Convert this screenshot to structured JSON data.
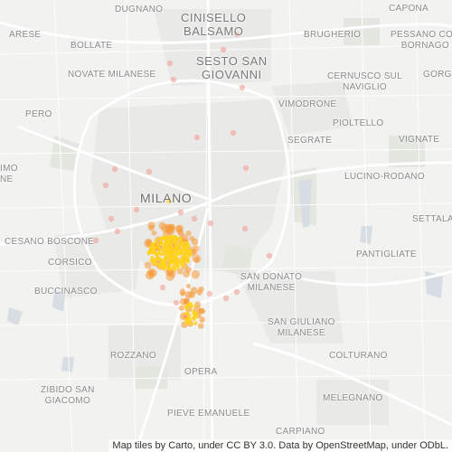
{
  "map": {
    "places": {
      "dugnano": "DUGNANO",
      "cinisello": "CINISELLO\nBALSAMO",
      "capona": "CAPONA",
      "arese": "ARESE",
      "bollate": "BOLLATE",
      "brugherio": "BRUGHERIO",
      "pessano": "PESSANO CON\nBORNAGO",
      "sesto": "SESTO SAN\nGIOVANNI",
      "gorgo": "GORGO",
      "novate": "NOVATE MILANESE",
      "cernusco": "CERNUSCO SUL\nNAVIGLIO",
      "vimodrone": "VIMODRONE",
      "pero": "PERO",
      "pioltello": "PIOLTELLO",
      "segrate": "SEGRATE",
      "vignate": "VIGNATE",
      "rho": "IMO\nNE",
      "milano": "MILANO",
      "lucino": "LUCINO-RODANO",
      "settala": "SETTALA",
      "cesano": "CESANO BOSCONE",
      "pantigliate": "PANTIGLIATE",
      "corsico": "CORSICO",
      "sandonato": "SAN DONATO\nMILANESE",
      "buccinasco": "BUCCINASCO",
      "sangiuliano": "SAN GIULIANO\nMILANESE",
      "rozzano": "ROZZANO",
      "colturano": "COLTURANO",
      "opera": "OPERA",
      "zibido": "ZIBIDO SAN\nGIACOMO",
      "melegnano": "MELEGNANO",
      "pieve": "PIEVE EMANUELE",
      "carpiano": "CARPIANO"
    },
    "attribution": {
      "prefix": "Map tiles by",
      "carto": "Carto",
      "license1": ", under CC BY 3.0. Data by",
      "osm": "OpenStreetMap",
      "license2": ", under ODbL."
    },
    "colors": {
      "background": "#f2f2f0",
      "roads": "#ffffff",
      "water": "#d7dde2",
      "parks": "#e3e7e0",
      "heat_low": "#f4a09a",
      "heat_mid": "#f59a3c",
      "heat_high": "#ffd21f"
    }
  }
}
